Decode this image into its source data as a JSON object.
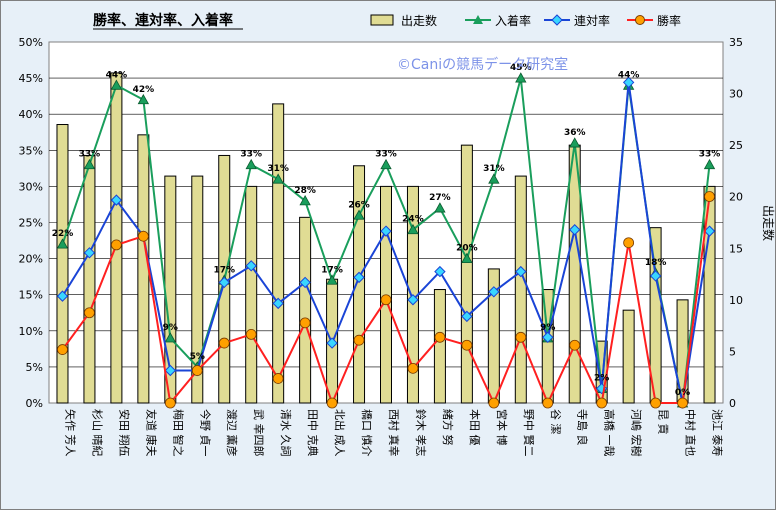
{
  "chart_data": {
    "type": "bar+line",
    "title": "勝率、連対率、入着率",
    "watermark": "©Caniの競馬データ研究室",
    "y_left": {
      "ticks": [
        "0%",
        "5%",
        "10%",
        "15%",
        "20%",
        "25%",
        "30%",
        "35%",
        "40%",
        "45%",
        "50%"
      ],
      "ylim": [
        0,
        50
      ]
    },
    "y_right": {
      "label": "出走数",
      "ticks": [
        "0",
        "5",
        "10",
        "15",
        "20",
        "25",
        "30",
        "35"
      ],
      "ylim": [
        0,
        35
      ]
    },
    "legend": [
      "出走数",
      "入着率",
      "連対率",
      "勝率"
    ],
    "colors": {
      "bar": "#e0dc94",
      "in_place": "#1a9e5c",
      "rentai": "#1a44d6",
      "win": "#ff2020"
    },
    "categories": [
      "矢作 芳人",
      "杉山 晴紀",
      "安田 翔伍",
      "友道 康夫",
      "梅田 智之",
      "今野 貞一",
      "渡辺 薫彦",
      "武 幸四郎",
      "清水 久詞",
      "田中 克典",
      "北出 成人",
      "橋口 慎介",
      "西村 真幸",
      "鈴木 孝志",
      "緒方 努",
      "本田 優",
      "宮本 博",
      "野中 賢二",
      "谷 潔",
      "寺島 良",
      "高橋 一哉",
      "河嶋 宏樹",
      "昆 貢",
      "中村 直也",
      "池江 泰寿"
    ],
    "series": [
      {
        "name": "出走数",
        "type": "bar",
        "axis": "right",
        "values": [
          27,
          24,
          32,
          26,
          22,
          22,
          24,
          21,
          29,
          18,
          12,
          23,
          21,
          21,
          11,
          25,
          13,
          22,
          11,
          25,
          6,
          9,
          17,
          10,
          21
        ]
      },
      {
        "name": "入着率",
        "type": "line",
        "axis": "left",
        "values": [
          22,
          33,
          44,
          42,
          9,
          5,
          17,
          33,
          31,
          28,
          17,
          26,
          33,
          24,
          27,
          20,
          31,
          45,
          9,
          36,
          2,
          44,
          18,
          0,
          33
        ]
      },
      {
        "name": "連対率",
        "type": "line",
        "axis": "left",
        "values": [
          14.8,
          20.8,
          28.1,
          23.1,
          4.5,
          4.5,
          16.7,
          19,
          13.8,
          16.7,
          8.3,
          17.4,
          23.8,
          14.3,
          18.2,
          12,
          15.4,
          18.2,
          9.1,
          24,
          2,
          44.4,
          17.6,
          0,
          23.8
        ]
      },
      {
        "name": "勝率",
        "type": "line",
        "axis": "left",
        "values": [
          7.4,
          12.5,
          21.9,
          23.1,
          0,
          4.5,
          8.3,
          9.5,
          3.4,
          11.1,
          0,
          8.7,
          14.3,
          4.8,
          9.1,
          8,
          0,
          9.1,
          0,
          8,
          0,
          22.2,
          0,
          0,
          28.6
        ]
      }
    ],
    "data_labels": [
      "22%",
      "33%",
      "44%",
      "42%",
      "9%",
      "5%",
      "17%",
      "33%",
      "31%",
      "28%",
      "17%",
      "26%",
      "33%",
      "24%",
      "27%",
      "20%",
      "31%",
      "45%",
      "9%",
      "36%",
      "2%",
      "44%",
      "18%",
      "0%",
      "33%"
    ]
  }
}
